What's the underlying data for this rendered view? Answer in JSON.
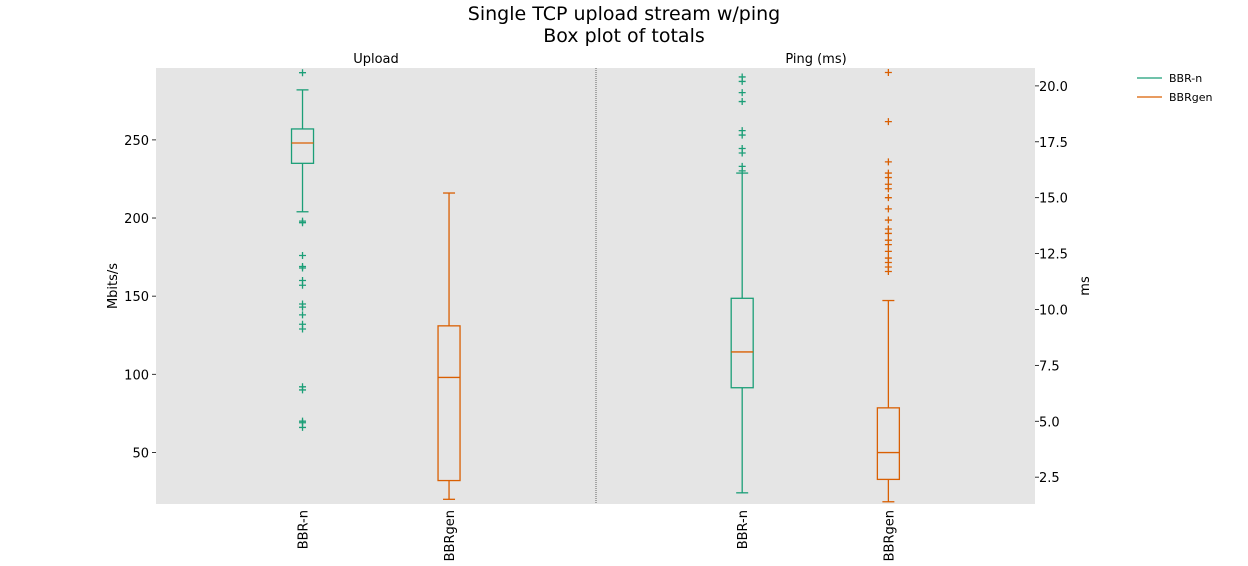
{
  "chart_data": {
    "type": "box",
    "title": "Single TCP upload stream w/ping",
    "subtitle": "Box plot of totals",
    "legend": {
      "placement": "top-right-outside",
      "entries": [
        {
          "name": "BBR-n",
          "color": "#1b9e77"
        },
        {
          "name": "BBRgen",
          "color": "#d95f02"
        }
      ]
    },
    "panels": [
      {
        "title": "Upload",
        "axis_side": "left",
        "ylabel": "Mbits/s",
        "ylim": [
          17,
          296
        ],
        "yticks": [
          50,
          100,
          150,
          200,
          250
        ],
        "categories": [
          "BBR-n",
          "BBRgen"
        ],
        "boxes": [
          {
            "name": "BBR-n",
            "color": "#1b9e77",
            "whisker_low": 204,
            "q1": 235,
            "median": 248,
            "q3": 257,
            "whisker_high": 282,
            "outliers": [
              293,
              197,
              198,
              176,
              169,
              168,
              160,
              157,
              145,
              143,
              138,
              132,
              129,
              92,
              90,
              70,
              69,
              66
            ]
          },
          {
            "name": "BBRgen",
            "color": "#d95f02",
            "whisker_low": 20,
            "q1": 32,
            "median": 98,
            "q3": 131,
            "whisker_high": 216,
            "outliers": []
          }
        ]
      },
      {
        "title": "Ping (ms)",
        "axis_side": "right",
        "ylabel": "ms",
        "ylim": [
          1.3,
          20.8
        ],
        "yticks": [
          2.5,
          5.0,
          7.5,
          10.0,
          12.5,
          15.0,
          17.5,
          20.0
        ],
        "categories": [
          "BBR-n",
          "BBRgen"
        ],
        "boxes": [
          {
            "name": "BBR-n",
            "color": "#1b9e77",
            "whisker_low": 1.8,
            "q1": 6.5,
            "median": 8.1,
            "q3": 10.5,
            "whisker_high": 16.1,
            "outliers": [
              20.4,
              20.2,
              19.7,
              19.3,
              18.0,
              17.8,
              17.2,
              17.0,
              16.4,
              16.2
            ]
          },
          {
            "name": "BBRgen",
            "color": "#d95f02",
            "whisker_low": 1.4,
            "q1": 2.4,
            "median": 3.6,
            "q3": 5.6,
            "whisker_high": 10.4,
            "outliers": [
              20.6,
              18.4,
              16.6,
              16.1,
              15.9,
              15.6,
              15.4,
              15.0,
              14.5,
              14.0,
              13.6,
              13.4,
              13.1,
              12.9,
              12.6,
              12.3,
              12.1,
              11.9,
              11.7
            ]
          }
        ]
      }
    ]
  }
}
